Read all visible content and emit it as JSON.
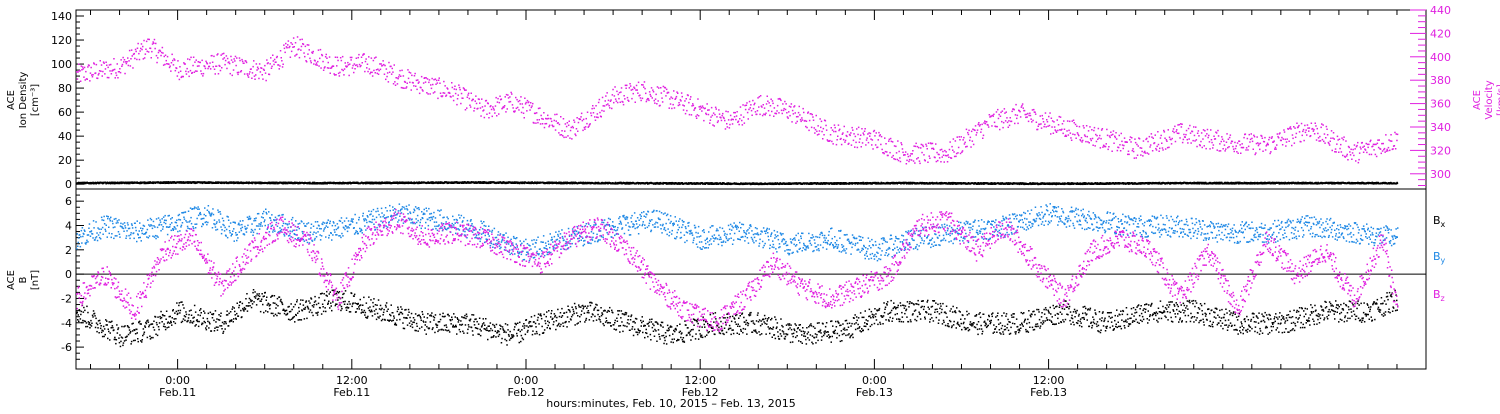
{
  "colors": {
    "black": "#000000",
    "magenta": "#e020e0",
    "blue": "#1e88e5"
  },
  "chart_data": [
    {
      "type": "scatter",
      "panel": "top",
      "ylabel_lines": [
        "ACE",
        "Ion Density",
        "[cm⁻³]"
      ],
      "y2label_lines": [
        "ACE",
        "Velocity",
        "[km/s]"
      ],
      "ylim": [
        -4,
        145
      ],
      "y2lim": [
        287,
        440
      ],
      "yticks": [
        0,
        20,
        40,
        60,
        80,
        100,
        120,
        140
      ],
      "y2ticks": [
        300,
        320,
        340,
        360,
        380,
        400,
        420,
        440
      ],
      "xlim_hours": [
        -7,
        86
      ],
      "series": [
        {
          "axis": "left",
          "color": "#000000",
          "x": [
            -7,
            0,
            10,
            20,
            30,
            40,
            50,
            60,
            70,
            80,
            84
          ],
          "y": [
            1.5,
            2,
            1.5,
            2,
            1.5,
            1,
            1.5,
            1,
            1.5,
            1.5,
            1.5
          ]
        },
        {
          "axis": "right",
          "color": "#e020e0",
          "x": [
            -7,
            -4,
            -2,
            0,
            3,
            6,
            8,
            11,
            13,
            16,
            19,
            21,
            23,
            25,
            27,
            30,
            32,
            35,
            38,
            40,
            42,
            45,
            48,
            50,
            53,
            56,
            58,
            61,
            64,
            66,
            69,
            72,
            75,
            78,
            81,
            84
          ],
          "y": [
            385,
            392,
            410,
            390,
            395,
            388,
            410,
            392,
            395,
            380,
            370,
            355,
            362,
            350,
            338,
            366,
            372,
            360,
            345,
            360,
            355,
            335,
            330,
            318,
            318,
            345,
            352,
            340,
            330,
            322,
            335,
            328,
            325,
            340,
            318,
            330
          ]
        }
      ]
    },
    {
      "type": "scatter",
      "panel": "bottom",
      "ylabel_lines": [
        "ACE",
        "B",
        "[nT]"
      ],
      "ylim": [
        -7.8,
        7
      ],
      "yticks": [
        -6,
        -4,
        -2,
        0,
        2,
        4,
        6
      ],
      "xlim_hours": [
        -7,
        86
      ],
      "xticks": [
        {
          "hour": 0,
          "time": "0:00",
          "date": "Feb.11"
        },
        {
          "hour": 12,
          "time": "12:00",
          "date": "Feb.11"
        },
        {
          "hour": 24,
          "time": "0:00",
          "date": "Feb.12"
        },
        {
          "hour": 36,
          "time": "12:00",
          "date": "Feb.12"
        },
        {
          "hour": 48,
          "time": "0:00",
          "date": "Feb.13"
        },
        {
          "hour": 60,
          "time": "12:00",
          "date": "Feb.13"
        }
      ],
      "xlabel": "hours:minutes, Feb. 10, 2015 – Feb. 13, 2015",
      "series": [
        {
          "name": "B",
          "sub": "x",
          "color": "#000000",
          "x": [
            -7,
            -4,
            -2,
            0,
            3,
            5,
            8,
            11,
            14,
            17,
            20,
            23,
            25,
            28,
            31,
            34,
            37,
            40,
            43,
            46,
            49,
            52,
            55,
            58,
            61,
            64,
            67,
            70,
            73,
            76,
            79,
            82,
            84
          ],
          "y": [
            -3,
            -5,
            -4.5,
            -3,
            -4,
            -2,
            -3,
            -2,
            -3,
            -4,
            -4,
            -5,
            -4,
            -3,
            -4,
            -5,
            -4,
            -4,
            -5,
            -4.5,
            -3,
            -3,
            -4,
            -4,
            -3,
            -4,
            -3,
            -3,
            -4,
            -4,
            -3,
            -3,
            -2
          ]
        },
        {
          "name": "B",
          "sub": "y",
          "color": "#1e88e5",
          "x": [
            -7,
            -5,
            -3,
            -1,
            2,
            4,
            6,
            9,
            12,
            15,
            18,
            21,
            24,
            27,
            30,
            33,
            36,
            39,
            42,
            45,
            48,
            51,
            54,
            57,
            60,
            63,
            66,
            69,
            72,
            75,
            78,
            81,
            84
          ],
          "y": [
            3,
            4,
            3.5,
            4,
            5,
            3.5,
            4.5,
            3.5,
            4,
            5,
            4.5,
            3.5,
            2,
            3,
            4,
            4.5,
            3,
            3.5,
            2.5,
            3,
            2,
            3,
            3.5,
            4,
            5,
            4.5,
            4,
            4,
            3.5,
            3.5,
            4,
            3.5,
            3
          ]
        },
        {
          "name": "B",
          "sub": "z",
          "color": "#e020e0",
          "x": [
            -7,
            -5,
            -3,
            -1,
            1,
            3,
            5,
            7,
            9,
            11,
            13,
            15,
            17,
            19,
            21,
            23,
            25,
            27,
            29,
            31,
            33,
            35,
            37,
            39,
            41,
            43,
            45,
            47,
            49,
            51,
            53,
            55,
            57,
            59,
            61,
            63,
            65,
            67,
            69,
            71,
            73,
            75,
            77,
            79,
            81,
            83,
            84
          ],
          "y": [
            -2,
            0,
            -3,
            2,
            3,
            -1,
            2,
            4,
            2.5,
            -2,
            3,
            4.5,
            3,
            3.5,
            3,
            2,
            1,
            3,
            4,
            2,
            -1,
            -3,
            -4,
            -2,
            1,
            -1,
            -2,
            -1,
            0,
            4,
            4.5,
            2,
            4,
            1,
            -2,
            2,
            3,
            2,
            -2,
            2,
            -3,
            3,
            0,
            2,
            -2,
            3,
            -3
          ]
        }
      ]
    }
  ]
}
